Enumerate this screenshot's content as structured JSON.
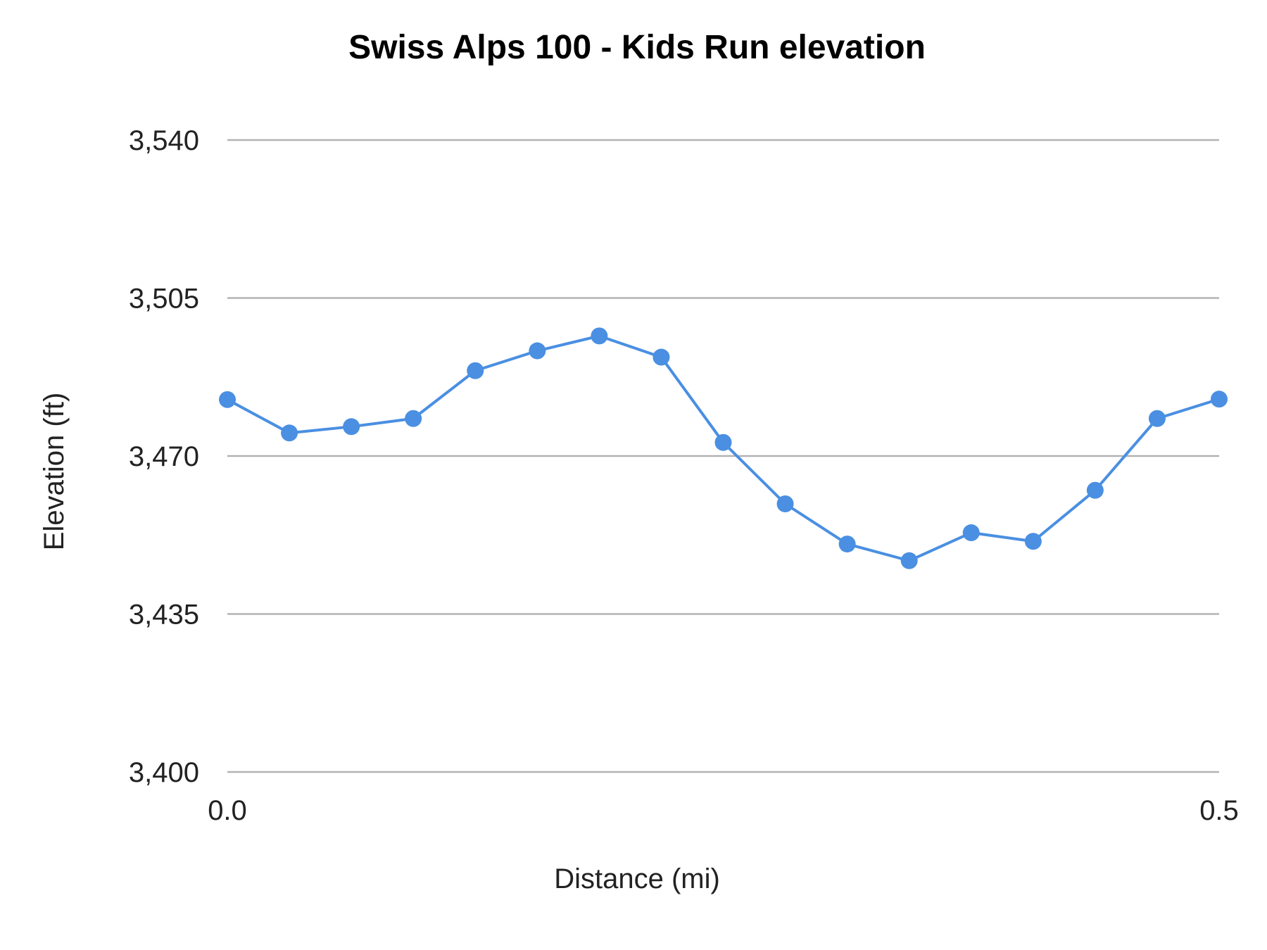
{
  "chart_data": {
    "type": "line",
    "title": "Swiss Alps 100 - Kids Run elevation",
    "xlabel": "Distance (mi)",
    "ylabel": "Elevation (ft)",
    "xlim": [
      0.0,
      0.5
    ],
    "ylim": [
      3400,
      3540
    ],
    "x_ticks": [
      {
        "value": 0.0,
        "label": "0.0"
      },
      {
        "value": 0.5,
        "label": "0.5"
      }
    ],
    "y_ticks": [
      {
        "value": 3400,
        "label": "3,400"
      },
      {
        "value": 3435,
        "label": "3,435"
      },
      {
        "value": 3470,
        "label": "3,470"
      },
      {
        "value": 3505,
        "label": "3,505"
      },
      {
        "value": 3540,
        "label": "3,540"
      }
    ],
    "grid": "horizontal",
    "legend": "none",
    "color": "#4a8fe2",
    "series": [
      {
        "x": [
          0.0,
          0.03125,
          0.0625,
          0.09375,
          0.125,
          0.15625,
          0.1875,
          0.21875,
          0.25,
          0.28125,
          0.3125,
          0.34375,
          0.375,
          0.40625,
          0.4375,
          0.46875,
          0.5
        ],
        "values": [
          3482.5,
          3475.1,
          3476.5,
          3478.3,
          3488.9,
          3493.3,
          3496.6,
          3491.9,
          3473.0,
          3459.4,
          3450.5,
          3446.8,
          3453.0,
          3451.1,
          3462.4,
          3478.3,
          3482.6
        ]
      }
    ]
  }
}
